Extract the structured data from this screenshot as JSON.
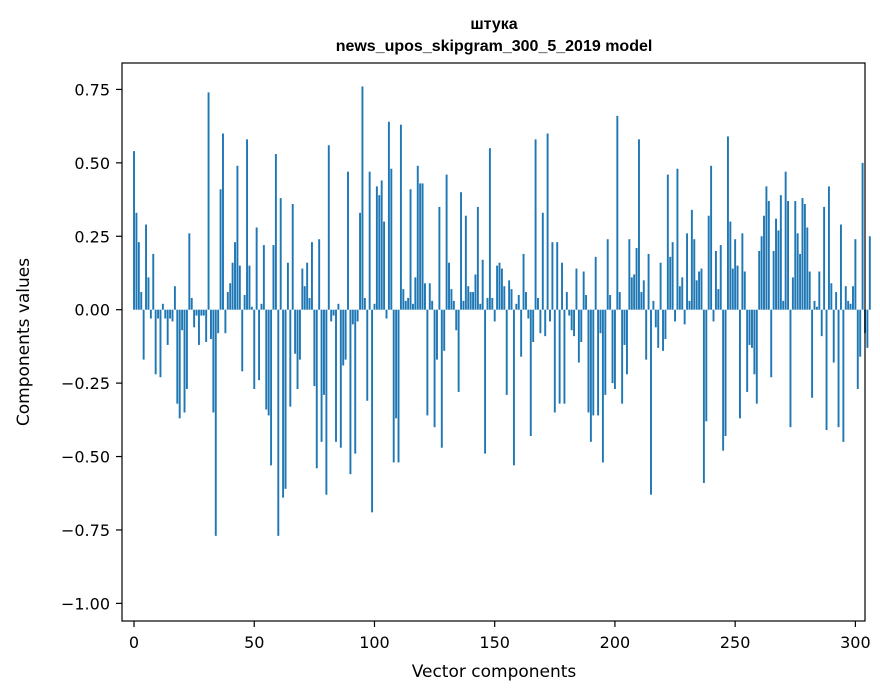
{
  "chart_data": {
    "type": "bar",
    "title": "штука",
    "subtitle": "news_upos_skipgram_300_5_2019 model",
    "xlabel": "Vector components",
    "ylabel": "Components values",
    "xlim": [
      -5,
      304
    ],
    "ylim": [
      -1.06,
      0.84
    ],
    "x_ticks": [
      0,
      50,
      100,
      150,
      200,
      250,
      300
    ],
    "x_tick_labels": [
      "0",
      "50",
      "100",
      "150",
      "200",
      "250",
      "300"
    ],
    "y_ticks": [
      0.75,
      0.5,
      0.25,
      0.0,
      -0.25,
      -0.5,
      -0.75,
      -1.0
    ],
    "y_tick_labels": [
      "0.75",
      "0.50",
      "0.25",
      "0.00",
      "−0.25",
      "−0.50",
      "−0.75",
      "−1.00"
    ],
    "bar_color": "#1f77b4",
    "values": [
      0.54,
      0.33,
      0.23,
      0.06,
      -0.17,
      0.29,
      0.11,
      -0.03,
      0.19,
      -0.22,
      -0.03,
      -0.23,
      0.02,
      -0.03,
      -0.12,
      -0.03,
      -0.04,
      0.08,
      -0.32,
      -0.37,
      -0.07,
      -0.35,
      -0.27,
      0.26,
      0.04,
      -0.06,
      -0.02,
      -0.12,
      -0.02,
      -0.02,
      -0.11,
      0.74,
      -0.1,
      -0.35,
      -0.77,
      -0.08,
      0.41,
      0.6,
      -0.08,
      0.06,
      0.09,
      0.16,
      0.23,
      0.49,
      0.15,
      -0.21,
      0.05,
      0.58,
      0.15,
      0.01,
      -0.27,
      0.28,
      -0.24,
      0.02,
      0.22,
      -0.34,
      -0.36,
      -0.53,
      0.22,
      0.53,
      -0.77,
      0.38,
      -0.64,
      -0.61,
      0.16,
      -0.33,
      0.36,
      -0.15,
      -0.27,
      -0.17,
      0.14,
      0.08,
      0.16,
      0.04,
      0.23,
      -0.26,
      -0.54,
      0.24,
      -0.45,
      -0.29,
      -0.63,
      0.56,
      -0.04,
      -0.02,
      -0.45,
      0.02,
      -0.47,
      -0.19,
      -0.17,
      0.47,
      -0.56,
      -0.05,
      -0.49,
      -0.04,
      0.33,
      0.76,
      0.04,
      -0.31,
      0.47,
      -0.69,
      0.02,
      0.42,
      0.39,
      0.44,
      0.3,
      -0.03,
      0.64,
      0.48,
      -0.52,
      -0.37,
      -0.52,
      0.63,
      0.07,
      0.03,
      0.04,
      0.41,
      0.02,
      0.11,
      0.49,
      0.43,
      0.43,
      0.09,
      -0.36,
      0.09,
      0.03,
      -0.4,
      -0.17,
      0.35,
      -0.47,
      -0.14,
      0.46,
      0.16,
      0.07,
      0.03,
      -0.07,
      -0.28,
      0.4,
      0.03,
      0.32,
      0.08,
      0.06,
      0.06,
      0.12,
      0.35,
      0.02,
      0.17,
      -0.49,
      0.04,
      0.55,
      0.04,
      -0.04,
      0.15,
      0.16,
      0.14,
      0.08,
      -0.29,
      0.1,
      0.07,
      -0.53,
      0.02,
      0.05,
      -0.16,
      0.19,
      0.06,
      -0.03,
      -0.43,
      -0.11,
      0.58,
      0.04,
      -0.08,
      0.33,
      -0.09,
      0.6,
      -0.04,
      0.23,
      -0.35,
      0.23,
      -0.32,
      0.16,
      -0.32,
      0.06,
      -0.02,
      -0.07,
      -0.09,
      0.14,
      -0.18,
      -0.11,
      0.13,
      0.05,
      -0.35,
      -0.45,
      -0.36,
      0.18,
      -0.36,
      -0.08,
      -0.52,
      -0.29,
      0.24,
      0.05,
      -0.25,
      -0.27,
      0.66,
      0.06,
      -0.32,
      -0.12,
      -0.22,
      0.24,
      0.11,
      0.12,
      0.21,
      0.58,
      0.06,
      0.1,
      -0.17,
      0.19,
      -0.63,
      0.03,
      -0.06,
      -0.13,
      0.16,
      -0.14,
      -0.1,
      0.46,
      0.18,
      0.23,
      -0.04,
      0.48,
      0.08,
      0.11,
      -0.05,
      0.26,
      0.03,
      0.34,
      0.24,
      0.1,
      0.13,
      0.14,
      -0.59,
      -0.38,
      0.32,
      0.49,
      -0.04,
      0.2,
      0.07,
      0.22,
      -0.48,
      -0.43,
      0.59,
      0.3,
      0.14,
      0.24,
      0.15,
      -0.37,
      0.26,
      0.13,
      -0.28,
      -0.12,
      -0.13,
      -0.22,
      -0.32,
      0.2,
      0.25,
      0.32,
      0.42,
      0.37,
      -0.23,
      0.2,
      0.31,
      0.27,
      0.39,
      0.03,
      0.47,
      0.37,
      -0.4,
      0.11,
      0.37,
      0.26,
      0.19,
      0.38,
      0.36,
      0.28,
      0.13,
      -0.3,
      0.03,
      0.01,
      0.13,
      -0.09,
      0.35,
      -0.41,
      0.42,
      0.09,
      -0.18,
      0.06,
      -0.4,
      0.29,
      -0.45,
      0.08,
      0.03,
      0.02,
      0.08,
      0.24,
      -0.27,
      -0.16,
      0.5,
      -0.08,
      -0.13,
      0.25
    ]
  }
}
